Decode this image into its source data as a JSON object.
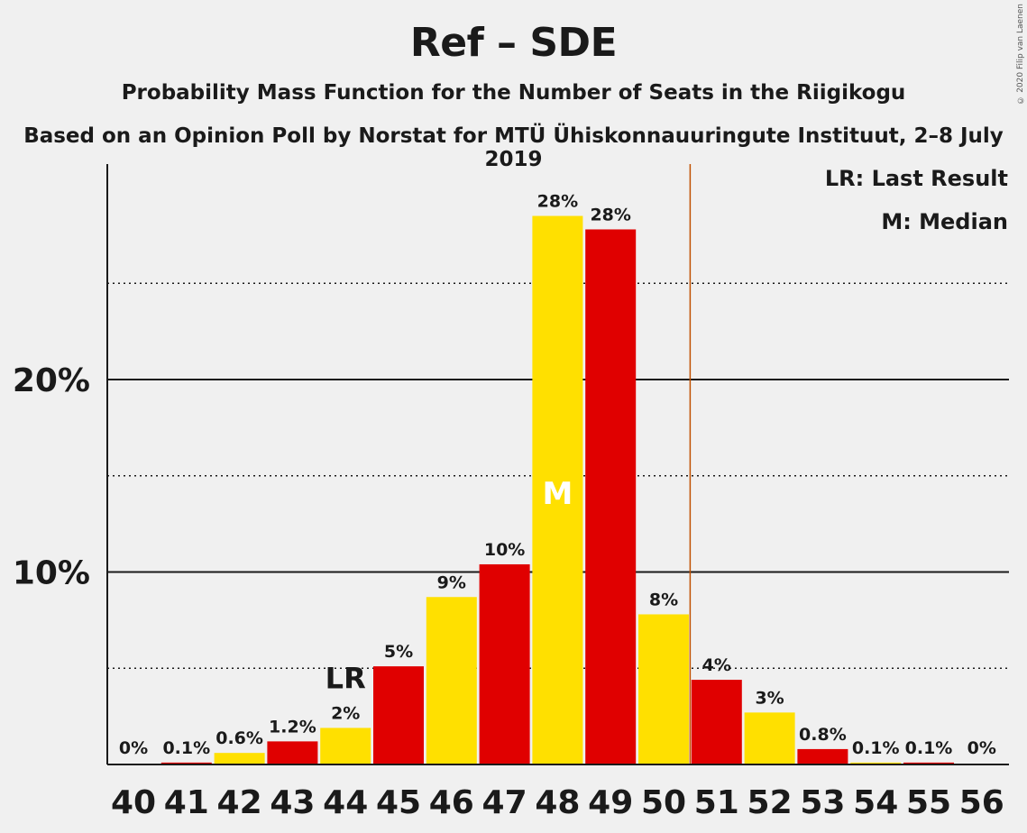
{
  "title": "Ref – SDE",
  "subtitle": "Probability Mass Function for the Number of Seats in the Riigikogu",
  "subtitle2": "Based on an Opinion Poll by Norstat for MTÜ Ühiskonnauuringute Instituut, 2–8 July 2019",
  "copyright": "© 2020 Filip van Laenen",
  "legend": {
    "last_result": "LR: Last Result",
    "median": "M: Median"
  },
  "colors": {
    "yellow": "#ffe000",
    "red": "#e00000",
    "last_result_line": "#c05000",
    "background": "#f0f0f0",
    "text": "#1a1a1a"
  },
  "chart_data": {
    "type": "bar",
    "categories": [
      "40",
      "41",
      "42",
      "43",
      "44",
      "45",
      "46",
      "47",
      "48",
      "49",
      "50",
      "51",
      "52",
      "53",
      "54",
      "55",
      "56"
    ],
    "values": [
      0,
      0.1,
      0.6,
      1.2,
      1.9,
      5.1,
      8.7,
      10.4,
      28.5,
      27.8,
      7.8,
      4.4,
      2.7,
      0.8,
      0.1,
      0.1,
      0
    ],
    "value_labels": [
      "0%",
      "0.1%",
      "0.6%",
      "1.2%",
      "2%",
      "5%",
      "9%",
      "10%",
      "28%",
      "28%",
      "8%",
      "4%",
      "3%",
      "0.8%",
      "0.1%",
      "0.1%",
      "0%"
    ],
    "bar_colors": [
      "yellow",
      "red",
      "yellow",
      "red",
      "yellow",
      "red",
      "yellow",
      "red",
      "yellow",
      "red",
      "yellow",
      "red",
      "yellow",
      "red",
      "yellow",
      "red",
      "yellow"
    ],
    "ylim": [
      0,
      31
    ],
    "yticks": [
      10,
      20
    ],
    "ytick_labels": [
      "10%",
      "20%"
    ],
    "minor_gridlines": [
      5,
      15,
      25
    ],
    "last_result": {
      "category": "44",
      "label": "LR"
    },
    "median": {
      "category": "48",
      "label": "M"
    },
    "majority_line_after": "50",
    "xlabel": "",
    "ylabel": ""
  }
}
